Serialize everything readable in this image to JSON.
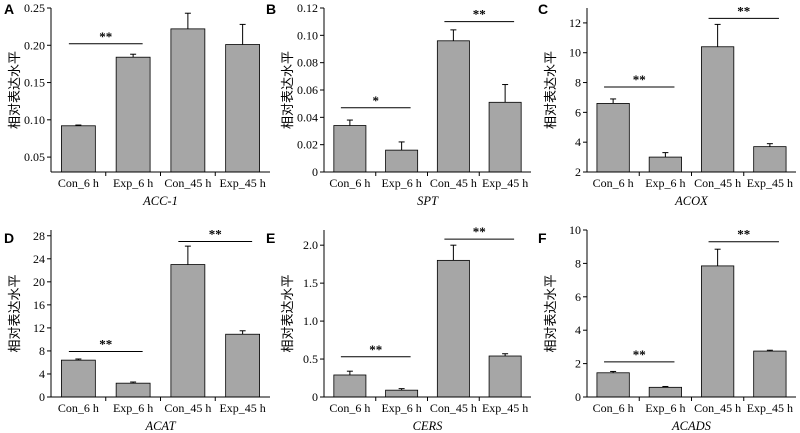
{
  "chart_data": [
    {
      "type": "bar",
      "panel": "A",
      "gene": "ACC-1",
      "ylabel": "相对表达水平",
      "categories": [
        "Con_6 h",
        "Exp_6 h",
        "Con_45 h",
        "Exp_45 h"
      ],
      "values": [
        0.092,
        0.184,
        0.222,
        0.201
      ],
      "errors": [
        0.001,
        0.004,
        0.021,
        0.027
      ],
      "ylim": [
        0.03,
        0.25
      ],
      "yticks": [
        0.05,
        0.1,
        0.15,
        0.2,
        0.25
      ],
      "ytick_labels": [
        "0.05",
        "0.10",
        "0.15",
        "0.20",
        "0.25"
      ],
      "significance": [
        {
          "from": 0,
          "to": 1,
          "y": 0.202,
          "label": "**"
        }
      ]
    },
    {
      "type": "bar",
      "panel": "B",
      "gene": "SPT",
      "ylabel": "相对表达水平",
      "categories": [
        "Con_6 h",
        "Exp_6 h",
        "Con_45 h",
        "Exp_45 h"
      ],
      "values": [
        0.034,
        0.016,
        0.096,
        0.051
      ],
      "errors": [
        0.004,
        0.006,
        0.008,
        0.013
      ],
      "ylim": [
        0,
        0.12
      ],
      "yticks": [
        0,
        0.02,
        0.04,
        0.06,
        0.08,
        0.1,
        0.12
      ],
      "ytick_labels": [
        "0",
        "0.02",
        "0.04",
        "0.06",
        "0.08",
        "0.10",
        "0.12"
      ],
      "significance": [
        {
          "from": 0,
          "to": 1,
          "y": 0.047,
          "label": "*"
        },
        {
          "from": 2,
          "to": 3,
          "y": 0.11,
          "label": "**"
        }
      ]
    },
    {
      "type": "bar",
      "panel": "C",
      "gene": "ACOX",
      "ylabel": "相对表达水平",
      "categories": [
        "Con_6 h",
        "Exp_6 h",
        "Con_45 h",
        "Exp_45 h"
      ],
      "values": [
        6.6,
        3.0,
        10.4,
        3.7
      ],
      "errors": [
        0.3,
        0.3,
        1.5,
        0.2
      ],
      "ylim": [
        2,
        13
      ],
      "yticks": [
        2,
        4,
        6,
        8,
        10,
        12
      ],
      "ytick_labels": [
        "2",
        "4",
        "6",
        "8",
        "10",
        "12"
      ],
      "significance": [
        {
          "from": 0,
          "to": 1,
          "y": 7.7,
          "label": "**"
        },
        {
          "from": 2,
          "to": 3,
          "y": 12.3,
          "label": "**"
        }
      ]
    },
    {
      "type": "bar",
      "panel": "D",
      "gene": "ACAT",
      "ylabel": "相对表达水平",
      "categories": [
        "Con_6 h",
        "Exp_6 h",
        "Con_45 h",
        "Exp_45 h"
      ],
      "values": [
        6.4,
        2.4,
        23.0,
        10.9
      ],
      "errors": [
        0.2,
        0.2,
        3.2,
        0.6
      ],
      "ylim": [
        0,
        29
      ],
      "yticks": [
        0,
        4,
        8,
        12,
        16,
        20,
        24,
        28
      ],
      "ytick_labels": [
        "0",
        "4",
        "8",
        "12",
        "16",
        "20",
        "24",
        "28"
      ],
      "significance": [
        {
          "from": 0,
          "to": 1,
          "y": 7.9,
          "label": "**"
        },
        {
          "from": 2,
          "to": 3,
          "y": 27.0,
          "label": "**"
        }
      ]
    },
    {
      "type": "bar",
      "panel": "E",
      "gene": "CERS",
      "ylabel": "相对表达水平",
      "categories": [
        "Con_6 h",
        "Exp_6 h",
        "Con_45 h",
        "Exp_45 h"
      ],
      "values": [
        0.29,
        0.09,
        1.8,
        0.54
      ],
      "errors": [
        0.05,
        0.02,
        0.2,
        0.03
      ],
      "ylim": [
        0,
        2.2
      ],
      "yticks": [
        0,
        0.5,
        1.0,
        1.5,
        2.0
      ],
      "ytick_labels": [
        "0",
        "0.5",
        "1.0",
        "1.5",
        "2.0"
      ],
      "significance": [
        {
          "from": 0,
          "to": 1,
          "y": 0.53,
          "label": "**"
        },
        {
          "from": 2,
          "to": 3,
          "y": 2.08,
          "label": "**"
        }
      ]
    },
    {
      "type": "bar",
      "panel": "F",
      "gene": "ACADS",
      "ylabel": "相对表达水平",
      "categories": [
        "Con_6 h",
        "Exp_6 h",
        "Con_45 h",
        "Exp_45 h"
      ],
      "values": [
        1.45,
        0.58,
        7.85,
        2.75
      ],
      "errors": [
        0.08,
        0.05,
        1.0,
        0.05
      ],
      "ylim": [
        0,
        10
      ],
      "yticks": [
        0,
        2,
        4,
        6,
        8,
        10
      ],
      "ytick_labels": [
        "0",
        "2",
        "4",
        "6",
        "8",
        "10"
      ],
      "significance": [
        {
          "from": 0,
          "to": 1,
          "y": 2.1,
          "label": "**"
        },
        {
          "from": 2,
          "to": 3,
          "y": 9.3,
          "label": "**"
        }
      ]
    }
  ]
}
